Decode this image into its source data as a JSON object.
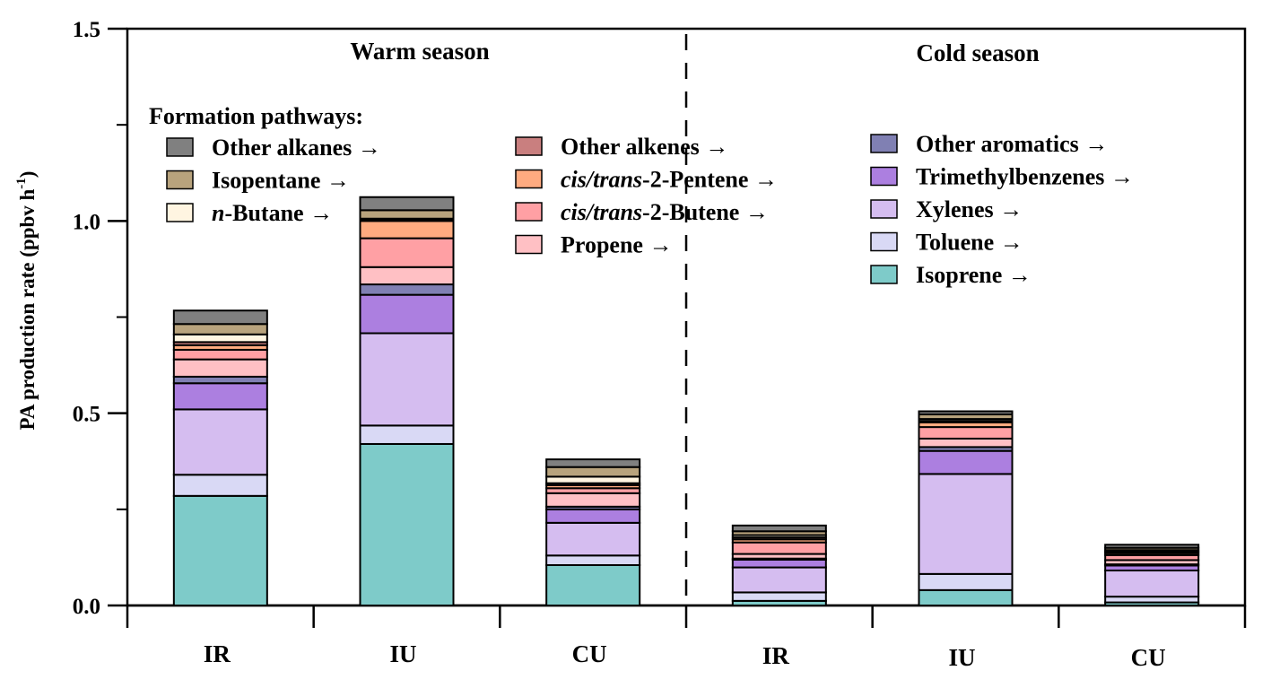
{
  "chart_data": {
    "type": "bar",
    "stacked": true,
    "ylabel": "PA production rate (ppbv h",
    "ylabel_unit_exponent": "-1",
    "ylabel_close": ")",
    "ylim": [
      0.0,
      1.5
    ],
    "yticks": [
      {
        "value": 0.0,
        "label": "0.0"
      },
      {
        "value": 0.5,
        "label": "0.5"
      },
      {
        "value": 1.0,
        "label": "1.0"
      },
      {
        "value": 1.5,
        "label": "1.5"
      }
    ],
    "groups": [
      {
        "label": "Warm season",
        "categories": [
          "IR",
          "IU",
          "CU"
        ]
      },
      {
        "label": "Cold season",
        "categories": [
          "IR",
          "IU",
          "CU"
        ]
      }
    ],
    "categories": [
      "IR",
      "IU",
      "CU",
      "IR",
      "IU",
      "CU"
    ],
    "legend_title": "Formation pathways:",
    "series": [
      {
        "name": "Isoprene",
        "arrow": " →",
        "color": "#7ecbc9",
        "values": [
          0.285,
          0.42,
          0.105,
          0.012,
          0.04,
          0.008
        ]
      },
      {
        "name": "Toluene",
        "arrow": " →",
        "color": "#d9d9f5",
        "values": [
          0.055,
          0.048,
          0.025,
          0.022,
          0.042,
          0.015
        ]
      },
      {
        "name": "Xylenes",
        "arrow": " →",
        "color": "#d5bdf0",
        "values": [
          0.17,
          0.24,
          0.085,
          0.065,
          0.26,
          0.068
        ]
      },
      {
        "name": "Trimethylbenzenes",
        "arrow": " →",
        "color": "#ac7fe0",
        "values": [
          0.068,
          0.1,
          0.035,
          0.02,
          0.06,
          0.013
        ]
      },
      {
        "name": "Other aromatics",
        "arrow": " →",
        "color": "#8080b3",
        "values": [
          0.017,
          0.027,
          0.007,
          0.003,
          0.01,
          0.003
        ]
      },
      {
        "name": "Propene",
        "arrow": " →",
        "color": "#ffc0c4",
        "values": [
          0.045,
          0.045,
          0.035,
          0.012,
          0.022,
          0.011
        ]
      },
      {
        "name": "cis/trans-2-Butene",
        "arrow": " →",
        "color": "#ffa0a4",
        "values": [
          0.025,
          0.075,
          0.013,
          0.03,
          0.03,
          0.013
        ]
      },
      {
        "name": "cis/trans-2-Pentene",
        "arrow": " →",
        "color": "#ffab80",
        "values": [
          0.012,
          0.045,
          0.008,
          0.008,
          0.012,
          0.005
        ]
      },
      {
        "name": "Other alkenes",
        "arrow": " →",
        "color": "#c97f7f",
        "values": [
          0.008,
          0.003,
          0.005,
          0.005,
          0.004,
          0.004
        ]
      },
      {
        "name": "n-Butane",
        "arrow": " →",
        "color": "#fff5e1",
        "values": [
          0.02,
          0.003,
          0.017,
          0.006,
          0.005,
          0.004
        ]
      },
      {
        "name": "Isopentane",
        "arrow": " →",
        "color": "#b8a37d",
        "values": [
          0.027,
          0.022,
          0.025,
          0.01,
          0.012,
          0.006
        ]
      },
      {
        "name": "Other alkanes",
        "arrow": " →",
        "color": "#808080",
        "values": [
          0.035,
          0.034,
          0.02,
          0.015,
          0.008,
          0.008
        ]
      }
    ]
  }
}
